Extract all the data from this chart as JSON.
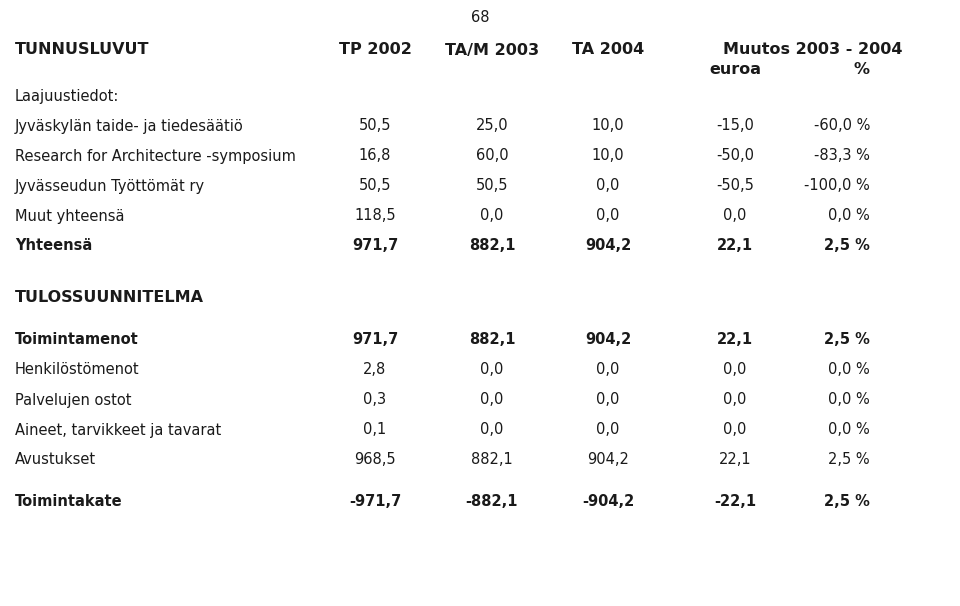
{
  "page_number": "68",
  "background_color": "#ffffff",
  "text_color": "#1a1a1a",
  "header": {
    "col0": "TUNNUSLUVUT",
    "col1": "TP 2002",
    "col2": "TA/M 2003",
    "col3": "TA 2004",
    "col4": "Muutos 2003 - 2004",
    "col4a": "euroa",
    "col4b": "%"
  },
  "rows": [
    {
      "type": "section",
      "label": "Laajuustiedot:",
      "bold": false
    },
    {
      "type": "data",
      "label": "Jyväskylän taide- ja tiedesäätiö",
      "v1": "50,5",
      "v2": "25,0",
      "v3": "10,0",
      "v4": "-15,0",
      "v5": "-60,0 %",
      "bold": false
    },
    {
      "type": "data",
      "label": "Research for Architecture -symposium",
      "v1": "16,8",
      "v2": "60,0",
      "v3": "10,0",
      "v4": "-50,0",
      "v5": "-83,3 %",
      "bold": false
    },
    {
      "type": "data",
      "label": "Jyvässeudun Työttömät ry",
      "v1": "50,5",
      "v2": "50,5",
      "v3": "0,0",
      "v4": "-50,5",
      "v5": "-100,0 %",
      "bold": false
    },
    {
      "type": "data",
      "label": "Muut yhteensä",
      "v1": "118,5",
      "v2": "0,0",
      "v3": "0,0",
      "v4": "0,0",
      "v5": "0,0 %",
      "bold": false
    },
    {
      "type": "data",
      "label": "Yhteensä",
      "v1": "971,7",
      "v2": "882,1",
      "v3": "904,2",
      "v4": "22,1",
      "v5": "2,5 %",
      "bold": true
    },
    {
      "type": "gap_large"
    },
    {
      "type": "section",
      "label": "TULOSSUUNNITELMA",
      "bold": true
    },
    {
      "type": "gap_medium"
    },
    {
      "type": "data",
      "label": "Toimintamenot",
      "v1": "971,7",
      "v2": "882,1",
      "v3": "904,2",
      "v4": "22,1",
      "v5": "2,5 %",
      "bold": true
    },
    {
      "type": "data",
      "label": "Henkilöstömenot",
      "v1": "2,8",
      "v2": "0,0",
      "v3": "0,0",
      "v4": "0,0",
      "v5": "0,0 %",
      "bold": false
    },
    {
      "type": "data",
      "label": "Palvelujen ostot",
      "v1": "0,3",
      "v2": "0,0",
      "v3": "0,0",
      "v4": "0,0",
      "v5": "0,0 %",
      "bold": false
    },
    {
      "type": "data",
      "label": "Aineet, tarvikkeet ja tavarat",
      "v1": "0,1",
      "v2": "0,0",
      "v3": "0,0",
      "v4": "0,0",
      "v5": "0,0 %",
      "bold": false
    },
    {
      "type": "data",
      "label": "Avustukset",
      "v1": "968,5",
      "v2": "882,1",
      "v3": "904,2",
      "v4": "22,1",
      "v5": "2,5 %",
      "bold": false
    },
    {
      "type": "gap_medium"
    },
    {
      "type": "data",
      "label": "Toimintakate",
      "v1": "-971,7",
      "v2": "-882,1",
      "v3": "-904,2",
      "v4": "-22,1",
      "v5": "2,5 %",
      "bold": true
    }
  ],
  "font_size": 10.5,
  "font_size_hdr": 11.5
}
